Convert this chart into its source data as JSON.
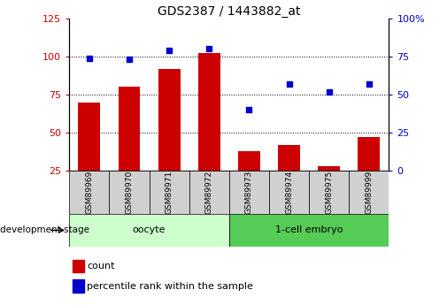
{
  "title": "GDS2387 / 1443882_at",
  "samples": [
    "GSM89969",
    "GSM89970",
    "GSM89971",
    "GSM89972",
    "GSM89973",
    "GSM89974",
    "GSM89975",
    "GSM89999"
  ],
  "bar_values": [
    70,
    80,
    92,
    102,
    38,
    42,
    28,
    47
  ],
  "dot_values": [
    74,
    73,
    79,
    80,
    40,
    57,
    52,
    57
  ],
  "bar_color": "#cc0000",
  "dot_color": "#0000cc",
  "ylim_left": [
    25,
    125
  ],
  "ylim_right": [
    0,
    100
  ],
  "yticks_left": [
    25,
    50,
    75,
    100,
    125
  ],
  "yticks_right": [
    0,
    25,
    50,
    75,
    100
  ],
  "groups": [
    {
      "label": "oocyte",
      "start": 0,
      "end": 4,
      "color": "#ccffcc"
    },
    {
      "label": "1-cell embryo",
      "start": 4,
      "end": 8,
      "color": "#55cc55"
    }
  ],
  "group_label": "development stage",
  "legend_count_label": "count",
  "legend_percentile_label": "percentile rank within the sample",
  "grid_yticks": [
    50,
    75,
    100
  ],
  "bar_bottom": 25,
  "background_color": "#ffffff",
  "tick_box_color": "#d0d0d0",
  "right_axis_label_suffix": "%"
}
